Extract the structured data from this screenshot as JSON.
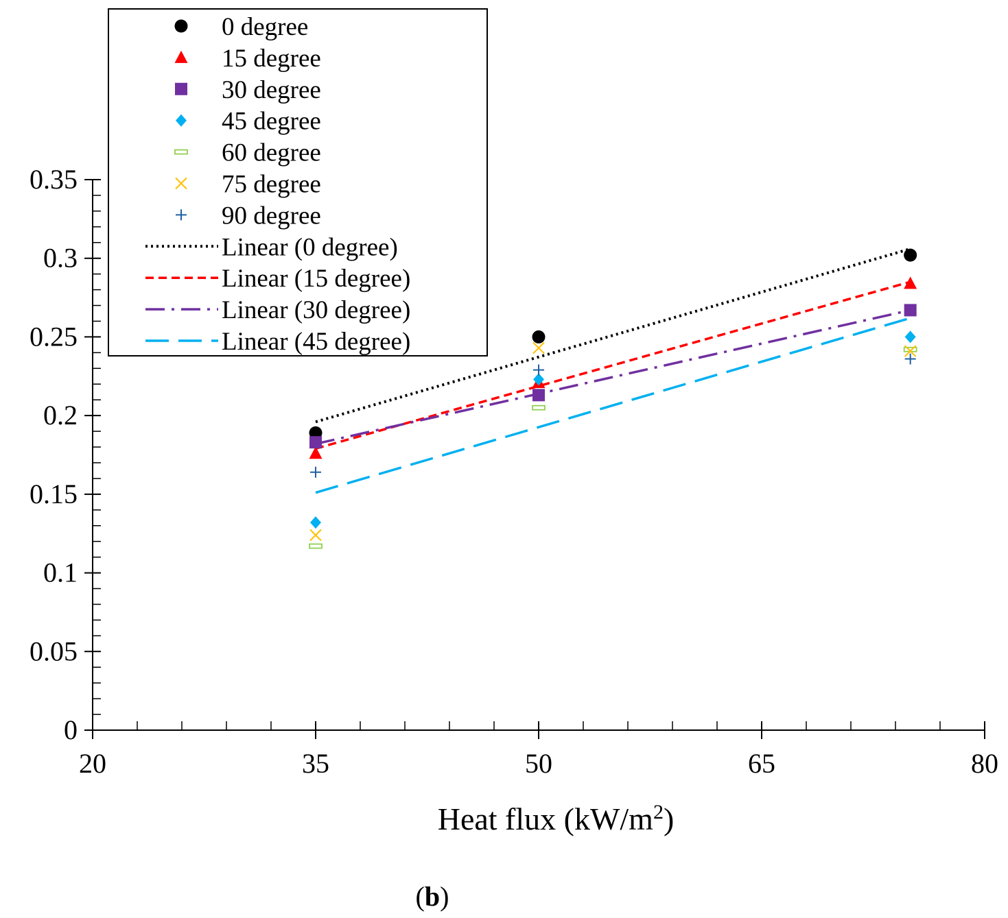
{
  "chart_data": {
    "type": "scatter",
    "title": "",
    "xlabel": "Heat flux (kW/m",
    "xlabel_superscript": "2",
    "xlabel_suffix": ")",
    "ylabel": "",
    "xlim": [
      20,
      80
    ],
    "ylim": [
      0,
      0.35
    ],
    "x_ticks": [
      "20",
      "35",
      "50",
      "65",
      "80"
    ],
    "y_ticks": [
      "0",
      "0.05",
      "0.1",
      "0.15",
      "0.2",
      "0.25",
      "0.3",
      "0.35"
    ],
    "x_tick_values": [
      20,
      35,
      50,
      65,
      80
    ],
    "y_tick_values": [
      0,
      0.05,
      0.1,
      0.15,
      0.2,
      0.25,
      0.3,
      0.35
    ],
    "series": [
      {
        "name": "0 degree",
        "marker": "circle",
        "color": "#000000",
        "x": [
          35,
          50,
          75
        ],
        "y": [
          0.189,
          0.25,
          0.302
        ]
      },
      {
        "name": "15 degree",
        "marker": "triangle",
        "color": "#ff0000",
        "x": [
          35,
          50,
          75
        ],
        "y": [
          0.176,
          0.221,
          0.284
        ]
      },
      {
        "name": "30 degree",
        "marker": "square",
        "color": "#7030a0",
        "x": [
          35,
          50,
          75
        ],
        "y": [
          0.183,
          0.213,
          0.267
        ]
      },
      {
        "name": "45 degree",
        "marker": "diamond",
        "color": "#00b0f0",
        "x": [
          35,
          50,
          75
        ],
        "y": [
          0.132,
          0.223,
          0.25
        ]
      },
      {
        "name": "60 degree",
        "marker": "dash",
        "color": "#92d050",
        "x": [
          35,
          50,
          75
        ],
        "y": [
          0.117,
          0.205,
          0.242
        ]
      },
      {
        "name": "75 degree",
        "marker": "x",
        "color": "#ffc000",
        "x": [
          35,
          50,
          75
        ],
        "y": [
          0.124,
          0.243,
          0.241
        ]
      },
      {
        "name": "90 degree",
        "marker": "plus",
        "color": "#1f5fa0",
        "x": [
          35,
          50,
          75
        ],
        "y": [
          0.164,
          0.229,
          0.236
        ]
      }
    ],
    "trendlines": [
      {
        "name": "Linear (0 degree)",
        "style": "dotted",
        "color": "#000000",
        "x": [
          35,
          75
        ],
        "y": [
          0.196,
          0.306
        ]
      },
      {
        "name": "Linear (15 degree)",
        "style": "dashed",
        "color": "#ff0000",
        "x": [
          35,
          75
        ],
        "y": [
          0.179,
          0.285
        ]
      },
      {
        "name": "Linear (30 degree)",
        "style": "dashdot",
        "color": "#7030a0",
        "x": [
          35,
          75
        ],
        "y": [
          0.182,
          0.267
        ]
      },
      {
        "name": "Linear (45 degree)",
        "style": "longdash",
        "color": "#00b0f0",
        "x": [
          35,
          75
        ],
        "y": [
          0.151,
          0.262
        ]
      }
    ],
    "legend_position": "top-left",
    "grid": false
  },
  "caption": {
    "open": "(",
    "label": "b",
    "close": ")"
  }
}
